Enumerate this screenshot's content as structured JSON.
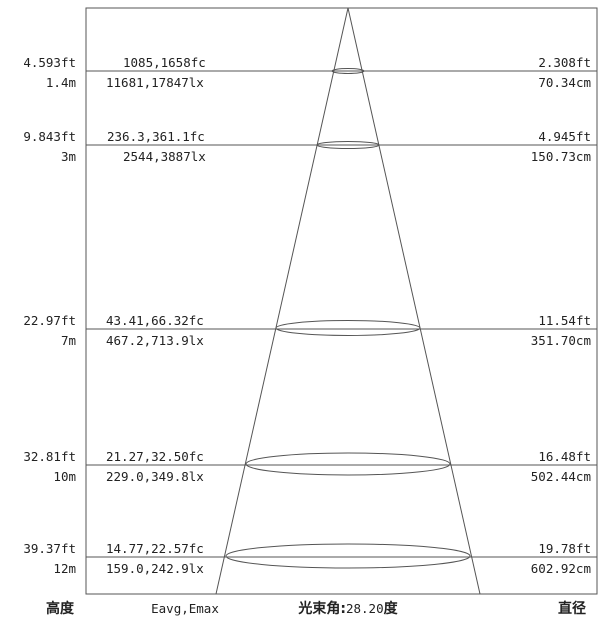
{
  "diagram": {
    "levels": [
      {
        "height_ft": "4.593ft",
        "height_m": "1.4m",
        "illuminance_fc": "1085,1658fc",
        "illuminance_lx": "11681,17847lx",
        "diameter_ft": "2.308ft",
        "diameter_cm": "70.34cm"
      },
      {
        "height_ft": "9.843ft",
        "height_m": "3m",
        "illuminance_fc": "236.3,361.1fc",
        "illuminance_lx": "2544,3887lx",
        "diameter_ft": "4.945ft",
        "diameter_cm": "150.73cm"
      },
      {
        "height_ft": "22.97ft",
        "height_m": "7m",
        "illuminance_fc": "43.41,66.32fc",
        "illuminance_lx": "467.2,713.9lx",
        "diameter_ft": "11.54ft",
        "diameter_cm": "351.70cm"
      },
      {
        "height_ft": "32.81ft",
        "height_m": "10m",
        "illuminance_fc": "21.27,32.50fc",
        "illuminance_lx": "229.0,349.8lx",
        "diameter_ft": "16.48ft",
        "diameter_cm": "502.44cm"
      },
      {
        "height_ft": "39.37ft",
        "height_m": "12m",
        "illuminance_fc": "14.77,22.57fc",
        "illuminance_lx": "159.0,242.9lx",
        "diameter_ft": "19.78ft",
        "diameter_cm": "602.92cm"
      }
    ],
    "footer": {
      "height_label": "高度",
      "eavg_emax_label": "Eavg,Emax",
      "beam_angle_label": "光束角:",
      "beam_angle_value": "28.20",
      "beam_angle_unit": "度",
      "diameter_label": "直径"
    }
  }
}
